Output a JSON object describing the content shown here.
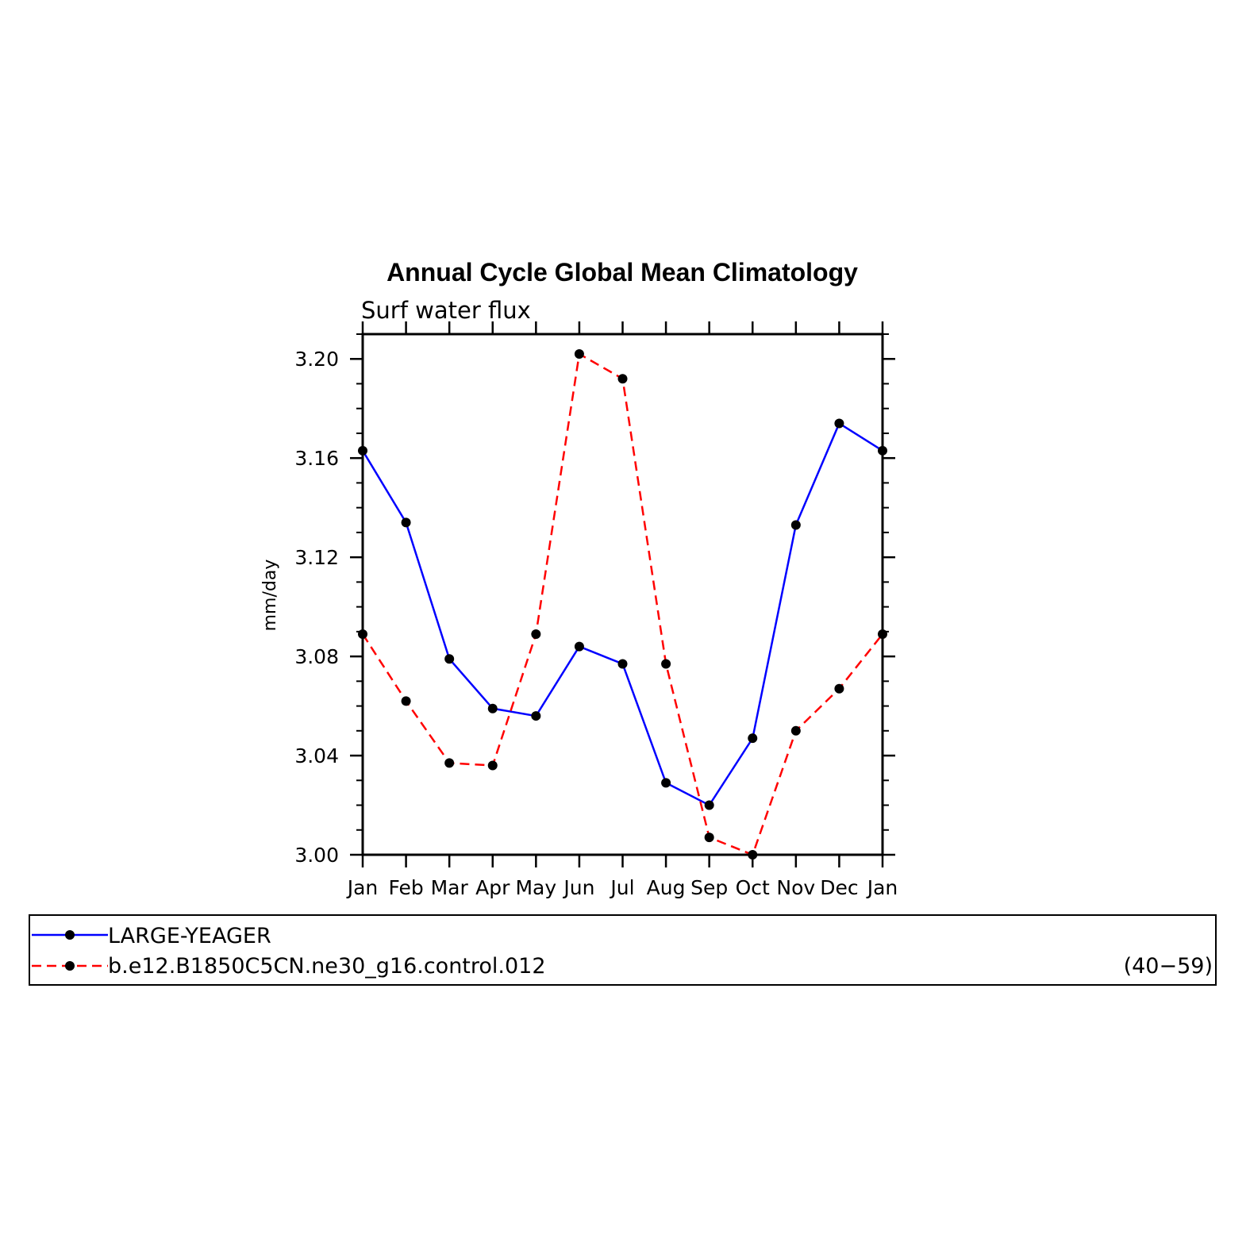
{
  "chart_data": {
    "type": "line",
    "title": "Annual Cycle Global Mean Climatology",
    "subtitle": "Surf water flux",
    "xlabel": "",
    "ylabel": "mm/day",
    "categories": [
      "Jan",
      "Feb",
      "Mar",
      "Apr",
      "May",
      "Jun",
      "Jul",
      "Aug",
      "Sep",
      "Oct",
      "Nov",
      "Dec",
      "Jan"
    ],
    "ylim": [
      3.0,
      3.21
    ],
    "yticks": [
      3.0,
      3.04,
      3.08,
      3.12,
      3.16,
      3.2
    ],
    "ytick_labels": [
      "3.00",
      "3.04",
      "3.08",
      "3.12",
      "3.16",
      "3.20"
    ],
    "grid": false,
    "legend_position": "bottom",
    "series": [
      {
        "name": "LARGE-YEAGER",
        "color": "#0000ff",
        "dash": "solid",
        "marker": "filled-circle",
        "values": [
          3.163,
          3.134,
          3.079,
          3.059,
          3.056,
          3.084,
          3.077,
          3.029,
          3.02,
          3.047,
          3.133,
          3.174,
          3.163
        ]
      },
      {
        "name": "b.e12.B1850C5CN.ne30_g16.control.012",
        "color": "#ff0000",
        "dash": "dashed",
        "marker": "filled-circle",
        "values": [
          3.089,
          3.062,
          3.037,
          3.036,
          3.089,
          3.202,
          3.192,
          3.077,
          3.007,
          3.0,
          3.05,
          3.067,
          3.089
        ]
      }
    ],
    "annotations": [
      "(40−59)"
    ]
  }
}
